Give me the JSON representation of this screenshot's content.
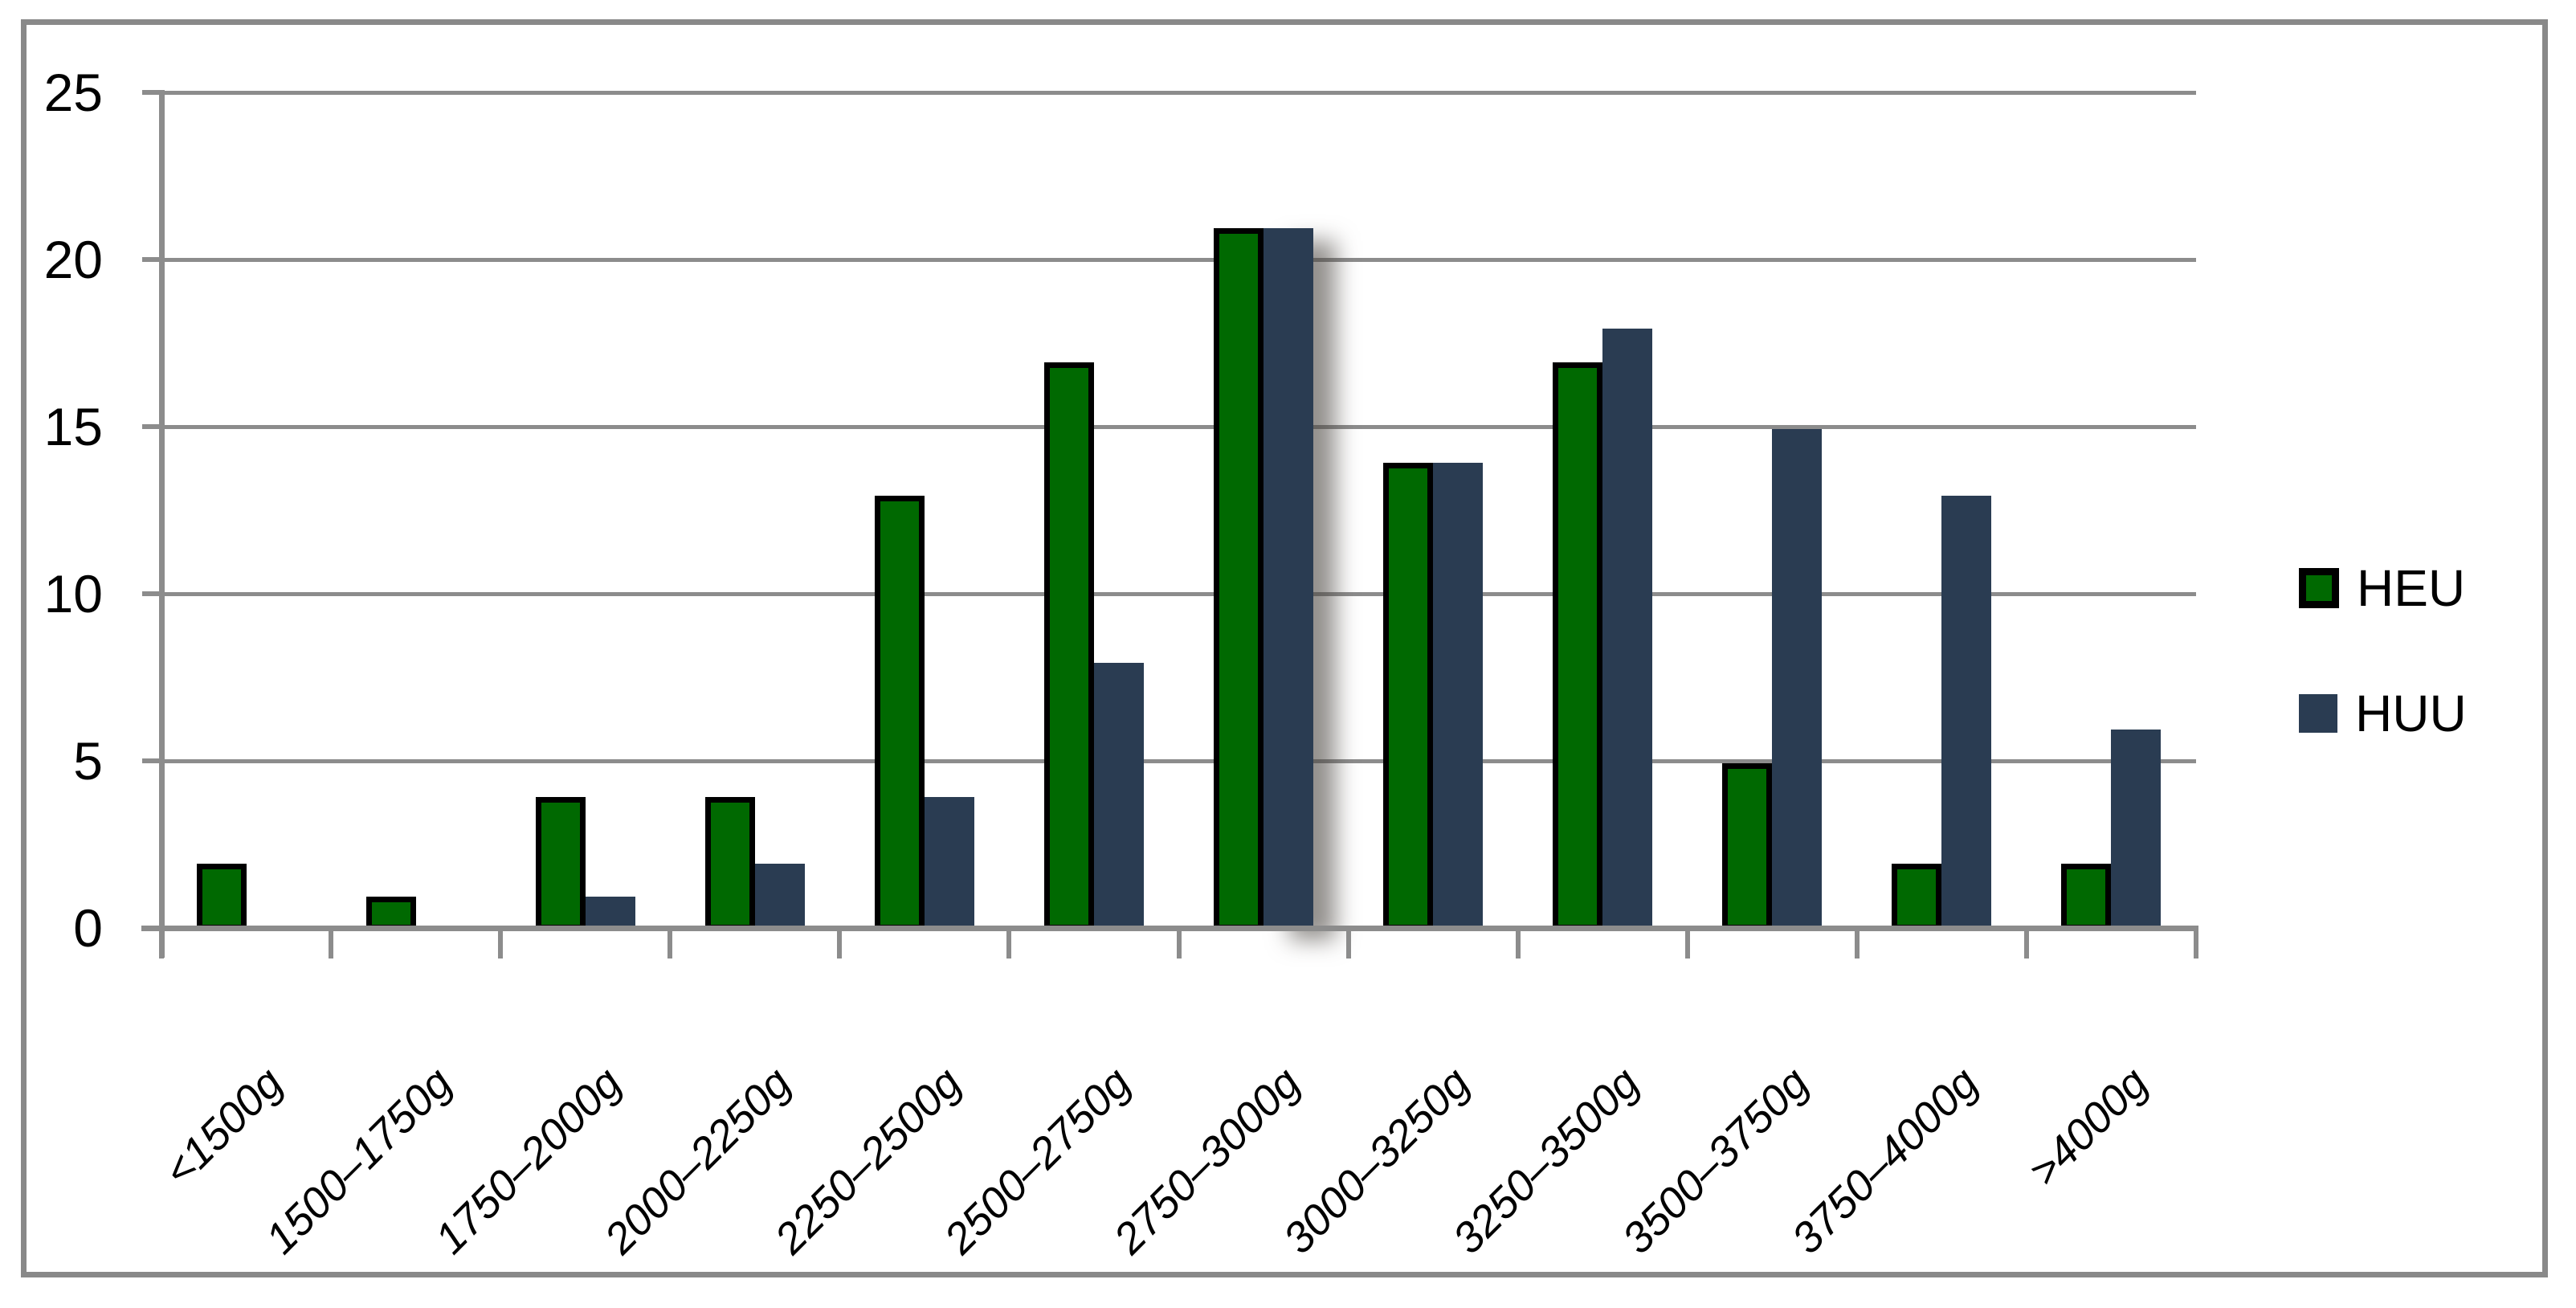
{
  "chart_data": {
    "type": "bar",
    "title": "",
    "xlabel": "",
    "ylabel": "",
    "categories": [
      "<1500g",
      "1500–1750g",
      "1750–2000g",
      "2000–2250g",
      "2250–2500g",
      "2500–2750g",
      "2750–3000g",
      "3000–3250g",
      "3250–3500g",
      "3500–3750g",
      "3750–4000g",
      ">4000g"
    ],
    "series": [
      {
        "name": "HEU",
        "color": "#006901",
        "border_color": "#000000",
        "values": [
          2,
          1,
          4,
          4,
          13,
          17,
          21,
          14,
          17,
          5,
          2,
          2
        ]
      },
      {
        "name": "HUU",
        "color": "#2A3C52",
        "border_color": null,
        "values": [
          0,
          0,
          1,
          2,
          4,
          8,
          21,
          14,
          18,
          15,
          13,
          6
        ]
      }
    ],
    "ylim": [
      0,
      25
    ],
    "yticks": [
      0,
      5,
      10,
      15,
      20,
      25
    ],
    "grid": true,
    "legend_position": "right",
    "highlight": {
      "series": "HUU",
      "category_index": 6,
      "effect": "drop-shadow-right"
    }
  },
  "style": {
    "background": "#FFFFFF",
    "grid_color": "#8C8C8C",
    "axis_color": "#8C8C8C",
    "frame_color": "#898989",
    "text_color": "#000000"
  }
}
